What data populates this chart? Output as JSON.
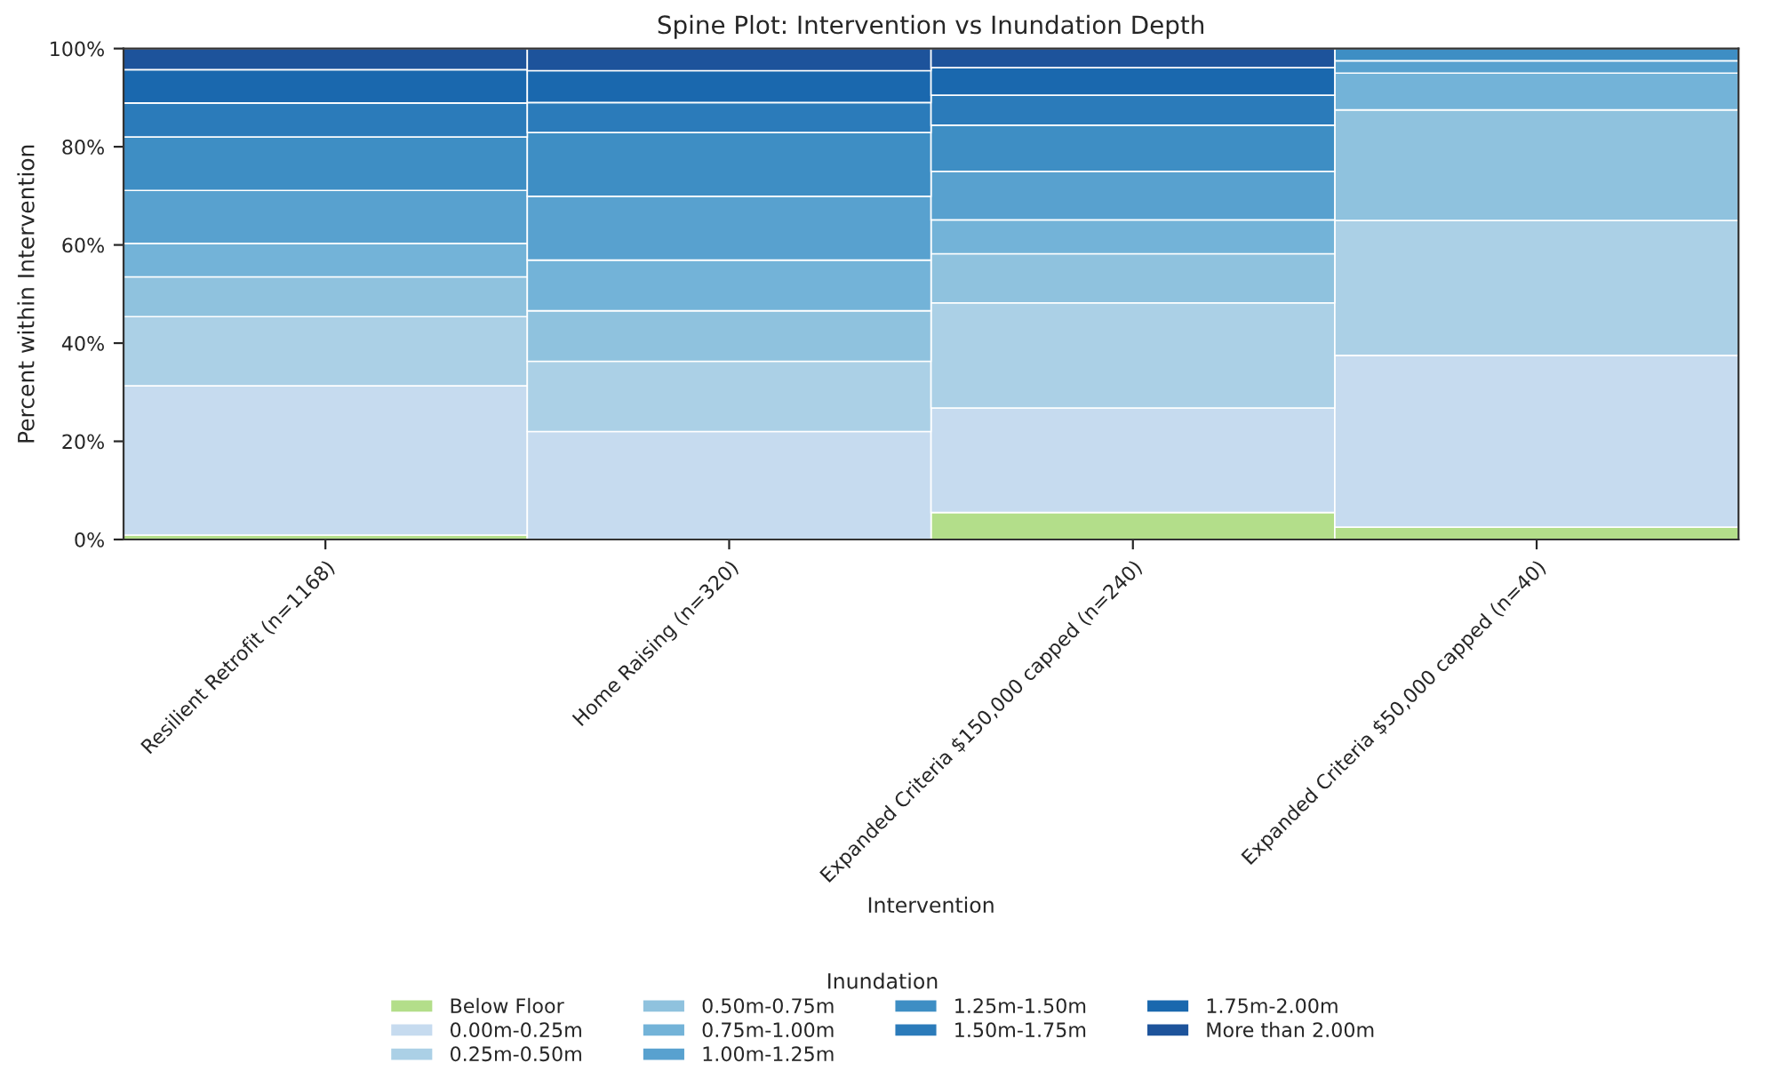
{
  "chart_data": {
    "type": "bar",
    "stacked": true,
    "title": "Spine Plot: Intervention vs Inundation Depth",
    "xlabel": "Intervention",
    "ylabel": "Percent within Intervention",
    "legend_title": "Inundation",
    "legend": "bottom",
    "categories": [
      "Resilient Retrofit (n=1168)",
      "Home Raising (n=320)",
      "Expanded Criteria $150,000 capped (n=240)",
      "Expanded Criteria $50,000 capped (n=40)"
    ],
    "ylim": [
      0,
      100
    ],
    "yticks": [
      {
        "value": 0,
        "label": "0%"
      },
      {
        "value": 20,
        "label": "20%"
      },
      {
        "value": 40,
        "label": "40%"
      },
      {
        "value": 60,
        "label": "60%"
      },
      {
        "value": 80,
        "label": "80%"
      },
      {
        "value": 100,
        "label": "100%"
      }
    ],
    "series": [
      {
        "name": "Below Floor",
        "color": "#b3de8a",
        "values": [
          0.9,
          0,
          5.5,
          2.5
        ]
      },
      {
        "name": "0.00m-0.25m",
        "color": "#c6dbef",
        "values": [
          30.4,
          22.0,
          21.3,
          35.0
        ]
      },
      {
        "name": "0.25m-0.50m",
        "color": "#abd0e6",
        "values": [
          14.1,
          14.3,
          21.4,
          27.5
        ]
      },
      {
        "name": "0.50m-0.75m",
        "color": "#8fc2de",
        "values": [
          8.1,
          10.3,
          10.0,
          22.5
        ]
      },
      {
        "name": "0.75m-1.00m",
        "color": "#73b3d8",
        "values": [
          6.8,
          10.3,
          6.9,
          7.5
        ]
      },
      {
        "name": "1.00m-1.25m",
        "color": "#58a1cf",
        "values": [
          10.8,
          13.0,
          9.9,
          2.5
        ]
      },
      {
        "name": "1.25m-1.50m",
        "color": "#3e8ec4",
        "values": [
          10.9,
          13.0,
          9.4,
          2.5
        ]
      },
      {
        "name": "1.50m-1.75m",
        "color": "#2b7bba",
        "values": [
          6.9,
          6.1,
          6.1,
          0
        ]
      },
      {
        "name": "1.75m-2.00m",
        "color": "#1a68ae",
        "values": [
          6.8,
          6.5,
          5.6,
          0
        ]
      },
      {
        "name": "More than 2.00m",
        "color": "#1d539b",
        "values": [
          4.3,
          4.5,
          3.9,
          0
        ]
      }
    ]
  }
}
